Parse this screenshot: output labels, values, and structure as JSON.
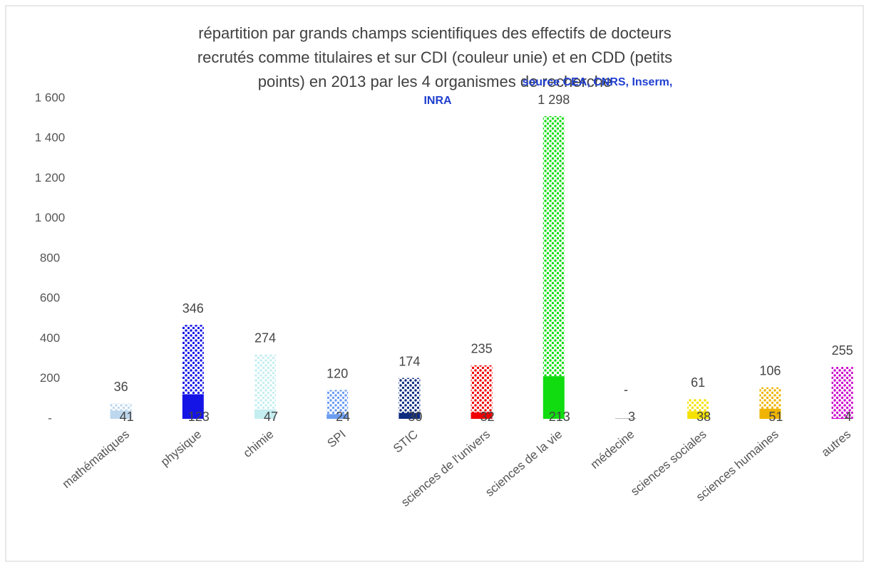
{
  "chart_data": {
    "type": "stacked-bar",
    "title_lines": [
      "répartition par grands champs scientifiques des effectifs de docteurs",
      "recrutés comme titulaires et sur CDI (couleur unie) et en CDD (petits",
      "points) en 2013 par les 4  organismes de recherche"
    ],
    "source_lines": [
      "source CEA, CNRS, Inserm,",
      "INRA"
    ],
    "categories": [
      "mathématiques",
      "physique",
      "chimie",
      "SPI",
      "STIC",
      "sciences de l'univers",
      "sciences de la vie",
      "médecine",
      "sciences sociales",
      "sciences humaines",
      "autres"
    ],
    "colors": [
      "#bdd7ee",
      "#1414e6",
      "#c5eef0",
      "#6a9cf0",
      "#0c2a7e",
      "#f00000",
      "#10dc10",
      "#b0b0b0",
      "#f5e200",
      "#f0b400",
      "#cc00cc"
    ],
    "series": [
      {
        "style": "solid",
        "values": [
          41,
          123,
          47,
          24,
          30,
          32,
          213,
          3,
          38,
          51,
          4
        ]
      },
      {
        "style": "dotted",
        "values": [
          36,
          346,
          274,
          120,
          174,
          235,
          1298,
          0,
          61,
          106,
          255
        ],
        "value_labels": [
          "36",
          "346",
          "274",
          "120",
          "174",
          "235",
          "1 298",
          "-",
          "61",
          "106",
          "255"
        ]
      }
    ],
    "ylim": [
      0,
      1600
    ],
    "yticks": [
      {
        "value": 0,
        "label": "-"
      },
      200,
      400,
      600,
      800,
      {
        "value": 1000,
        "label": "1 000"
      },
      {
        "value": 1200,
        "label": "1 200"
      },
      {
        "value": 1400,
        "label": "1 400"
      },
      {
        "value": 1600,
        "label": "1 600"
      }
    ],
    "grid": false
  }
}
